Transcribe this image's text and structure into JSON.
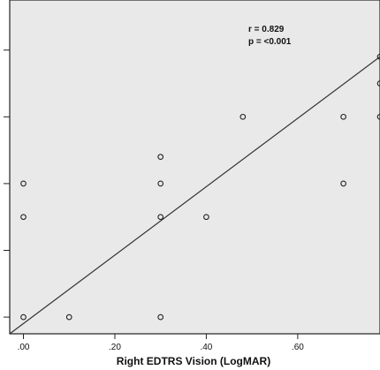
{
  "chart_data": {
    "type": "scatter",
    "xlabel": "Right EDTRS Vision (LogMAR)",
    "x_ticks": [
      ".00",
      ".20",
      ".40",
      ".60"
    ],
    "x_tick_values": [
      0.0,
      0.2,
      0.4,
      0.6
    ],
    "xlim": [
      -0.03,
      0.78
    ],
    "ylim": [
      -0.05,
      0.95
    ],
    "y_tick_values": [
      0.0,
      0.2,
      0.4,
      0.6,
      0.8
    ],
    "grid": false,
    "points": [
      {
        "x": 0.0,
        "y": 0.0
      },
      {
        "x": 0.0,
        "y": 0.3
      },
      {
        "x": 0.0,
        "y": 0.4
      },
      {
        "x": 0.1,
        "y": 0.0
      },
      {
        "x": 0.3,
        "y": 0.0
      },
      {
        "x": 0.3,
        "y": 0.3
      },
      {
        "x": 0.3,
        "y": 0.4
      },
      {
        "x": 0.3,
        "y": 0.48
      },
      {
        "x": 0.4,
        "y": 0.3
      },
      {
        "x": 0.48,
        "y": 0.6
      },
      {
        "x": 0.7,
        "y": 0.4
      },
      {
        "x": 0.7,
        "y": 0.6
      },
      {
        "x": 0.78,
        "y": 0.6
      },
      {
        "x": 0.78,
        "y": 0.7
      },
      {
        "x": 0.78,
        "y": 0.78
      }
    ],
    "fit_line": {
      "x0": -0.03,
      "y0": -0.05,
      "x1": 0.78,
      "y1": 0.78
    },
    "annotations": [
      "r = 0.829",
      "p = <0.001"
    ]
  },
  "colors": {
    "plot_background": "#e9e9e9",
    "frame": "#222222",
    "marker_stroke": "#222222",
    "fit_line": "#333333"
  }
}
